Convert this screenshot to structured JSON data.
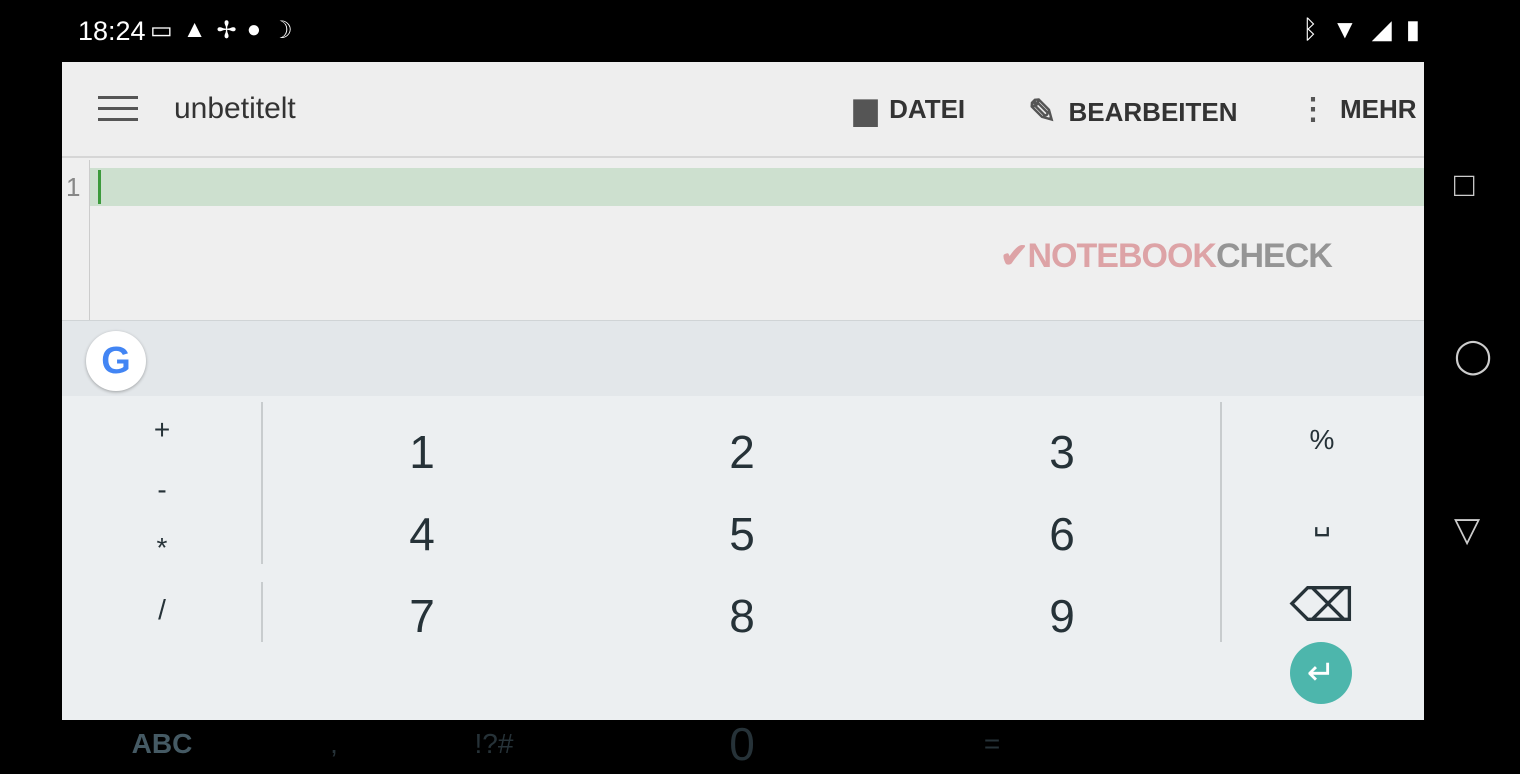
{
  "status_bar": {
    "time": "18:24",
    "left_icons": [
      "gallery-icon",
      "image-icon",
      "pinwheel-icon",
      "flame-icon",
      "moon-icon"
    ],
    "right_icons": [
      "bluetooth-icon",
      "wifi-icon",
      "signal-icon",
      "battery-icon"
    ]
  },
  "toolbar": {
    "title": "unbetitelt",
    "actions": [
      {
        "label": "DATEI",
        "icon": "folder-icon"
      },
      {
        "label": "BEARBEITEN",
        "icon": "pencil-icon"
      },
      {
        "label": "MEHR",
        "icon": "more-vert-icon"
      }
    ]
  },
  "editor": {
    "line_number": "1",
    "current_line_color": "#cde0cf"
  },
  "keyboard": {
    "ops": [
      "+",
      "-",
      "*",
      "/"
    ],
    "digits": [
      "1",
      "2",
      "3",
      "4",
      "5",
      "6",
      "7",
      "8",
      "9"
    ],
    "right": [
      "%",
      "␣",
      "⌫"
    ],
    "bottom": {
      "abc": "ABC",
      "comma": ",",
      "symbols": "!?#",
      "zero": "0",
      "equals": "="
    },
    "accent": "#4db6ac"
  },
  "watermark": {
    "text1": "NOTEBOOK",
    "text2": "CHECK"
  }
}
